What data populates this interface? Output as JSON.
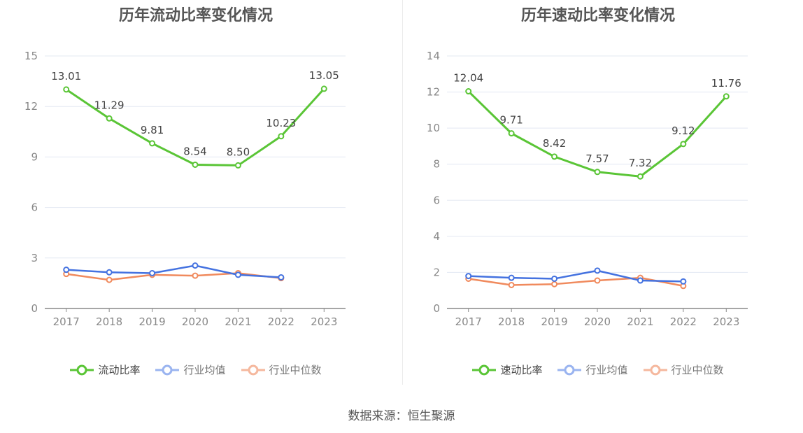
{
  "chart_data": [
    {
      "type": "line",
      "title": "历年流动比率变化情况",
      "categories": [
        "2017",
        "2018",
        "2019",
        "2020",
        "2021",
        "2022",
        "2023"
      ],
      "ylim": [
        0,
        15
      ],
      "yticks": [
        "0",
        "3",
        "6",
        "9",
        "12",
        "15"
      ],
      "yticks_values": [
        0,
        3,
        6,
        9,
        12,
        15
      ],
      "series": [
        {
          "name": "流动比率",
          "color": "#5ac536",
          "values": [
            13.01,
            11.29,
            9.81,
            8.54,
            8.5,
            10.23,
            13.05
          ],
          "labels": [
            "13.01",
            "11.29",
            "9.81",
            "8.54",
            "8.50",
            "10.23",
            "13.05"
          ]
        },
        {
          "name": "行业均值",
          "color": "#4472e0",
          "values": [
            2.3,
            2.15,
            2.1,
            2.55,
            2.0,
            1.85,
            null
          ]
        },
        {
          "name": "行业中位数",
          "color": "#f08a5d",
          "values": [
            2.05,
            1.7,
            2.0,
            1.95,
            2.1,
            1.8,
            null
          ]
        }
      ]
    },
    {
      "type": "line",
      "title": "历年速动比率变化情况",
      "categories": [
        "2017",
        "2018",
        "2019",
        "2020",
        "2021",
        "2022",
        "2023"
      ],
      "ylim": [
        0,
        14
      ],
      "yticks": [
        "0",
        "2",
        "4",
        "6",
        "8",
        "10",
        "12",
        "14"
      ],
      "yticks_values": [
        0,
        2,
        4,
        6,
        8,
        10,
        12,
        14
      ],
      "series": [
        {
          "name": "速动比率",
          "color": "#5ac536",
          "values": [
            12.04,
            9.71,
            8.42,
            7.57,
            7.32,
            9.12,
            11.76
          ],
          "labels": [
            "12.04",
            "9.71",
            "8.42",
            "7.57",
            "7.32",
            "9.12",
            "11.76"
          ]
        },
        {
          "name": "行业均值",
          "color": "#4472e0",
          "values": [
            1.8,
            1.7,
            1.65,
            2.1,
            1.55,
            1.5,
            null
          ]
        },
        {
          "name": "行业中位数",
          "color": "#f08a5d",
          "values": [
            1.65,
            1.3,
            1.35,
            1.55,
            1.7,
            1.25,
            null
          ]
        }
      ]
    }
  ],
  "legend_colors": {
    "main": "#5ac536",
    "avg": "#9ab4f0",
    "median": "#f5b89e"
  },
  "source": "数据来源：恒生聚源"
}
